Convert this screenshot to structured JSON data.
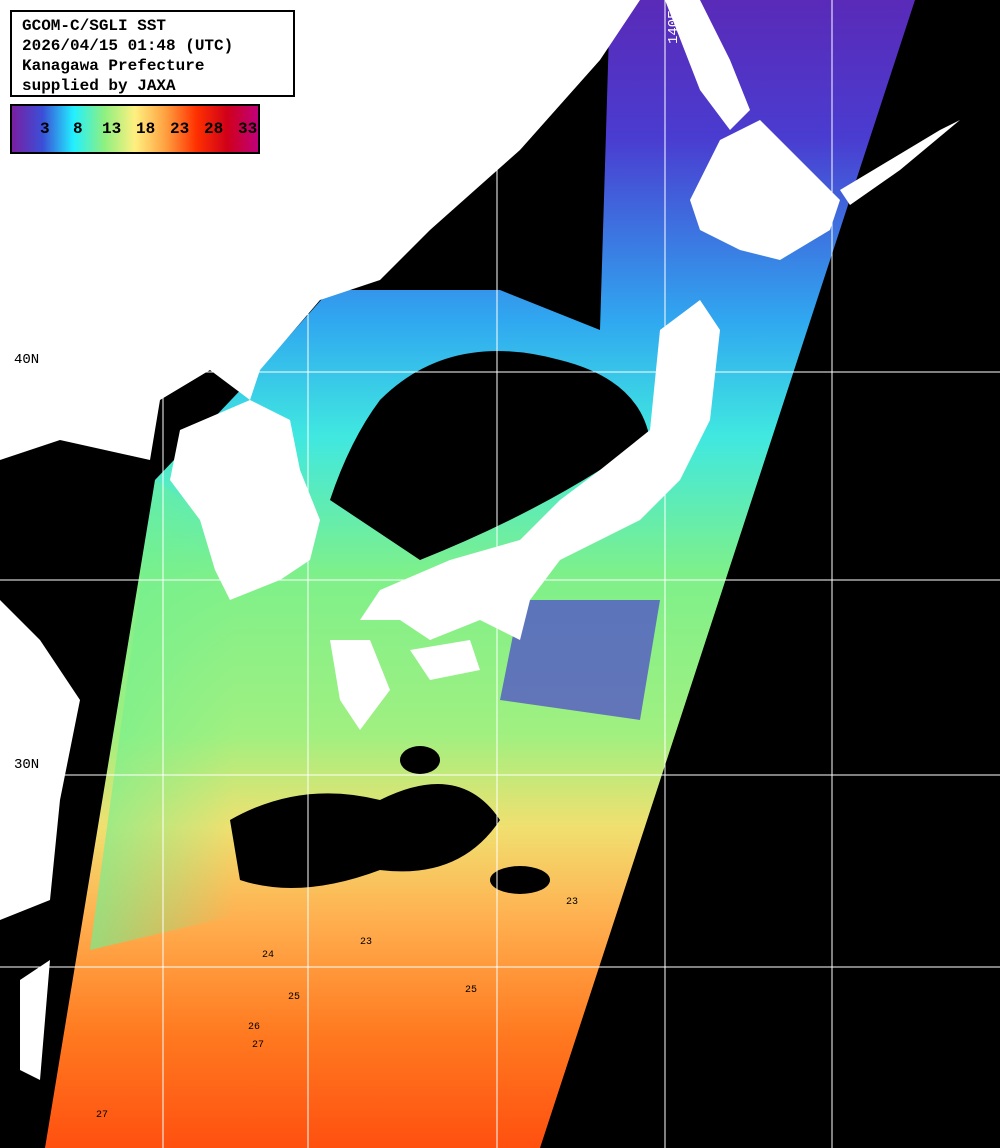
{
  "title": {
    "line1": "GCOM-C/SGLI SST",
    "line2": "2026/04/15 01:48 (UTC)",
    "line3": "Kanagawa Prefecture",
    "line4": "supplied by JAXA"
  },
  "colorbar": {
    "ticks": [
      "3",
      "8",
      "13",
      "18",
      "23",
      "28",
      "33"
    ],
    "colors": [
      "#7a1fa0",
      "#3a4fd8",
      "#22f0ff",
      "#8ef080",
      "#fff080",
      "#ffa040",
      "#ff3000",
      "#d0001a",
      "#c0007a"
    ]
  },
  "grid": {
    "lat_labels": [
      "40N",
      "30N"
    ],
    "lon_labels": [
      "140E"
    ]
  },
  "contour_labels": [
    "23",
    "23",
    "24",
    "25",
    "25",
    "26",
    "27",
    "27"
  ],
  "colors": {
    "land": "#ffffff",
    "no_data": "#000000",
    "grid": "#ffffff"
  }
}
